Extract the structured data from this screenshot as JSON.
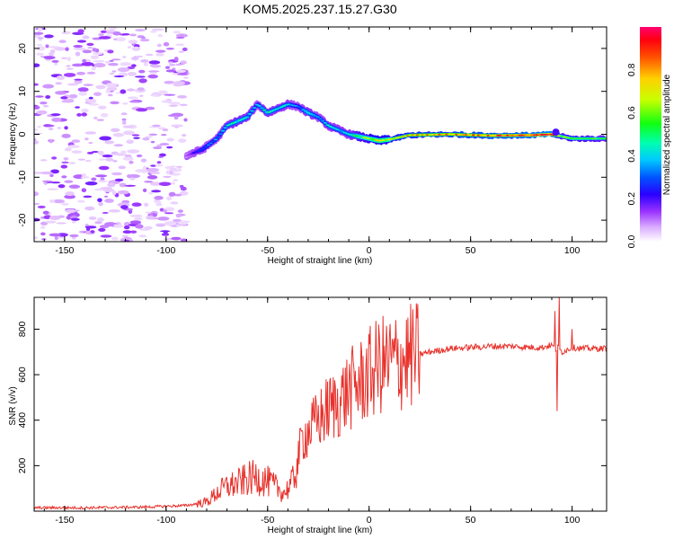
{
  "chart_data": [
    {
      "type": "heatmap",
      "title": "KOM5.2025.237.15.27.G30",
      "xlabel": "Height of straight line (km)",
      "ylabel": "Frequency (Hz)",
      "xlim": [
        -165,
        117
      ],
      "ylim": [
        -25,
        25
      ],
      "xticks": [
        "-150",
        "-100",
        "-50",
        "0",
        "50",
        "100"
      ],
      "yticks": [
        "-20",
        "-10",
        "0",
        "10",
        "20"
      ],
      "colorbar": {
        "label": "Normalized spectral amplitude",
        "range": [
          0,
          1
        ],
        "ticks": [
          "0.0",
          "0.2",
          "0.4",
          "0.6",
          "0.8"
        ]
      },
      "trace": {
        "description": "dominant frequency ridge",
        "x": [
          -90,
          -82,
          -75,
          -70,
          -65,
          -60,
          -55,
          -50,
          -45,
          -40,
          -35,
          -30,
          -25,
          -20,
          -15,
          -10,
          -5,
          0,
          5,
          10,
          20,
          40,
          60,
          80,
          90,
          95,
          100,
          117
        ],
        "freq": [
          -5,
          -3.5,
          -1,
          2,
          3,
          4,
          7,
          5,
          6,
          7,
          6.5,
          5,
          4,
          2,
          1,
          0,
          -0.5,
          -1,
          -1.5,
          -1.2,
          -0.2,
          0,
          -0.3,
          -0.2,
          0,
          -0.5,
          -1,
          -1
        ],
        "amplitude": [
          0.12,
          0.3,
          0.35,
          0.4,
          0.45,
          0.42,
          0.35,
          0.45,
          0.4,
          0.4,
          0.3,
          0.45,
          0.35,
          0.4,
          0.4,
          0.4,
          0.55,
          0.6,
          0.7,
          0.65,
          0.75,
          0.8,
          0.85,
          0.9,
          0.95,
          0.55,
          0.6,
          0.5
        ]
      },
      "noise_region": {
        "x_from": -165,
        "x_to": -90,
        "freq_from": -25,
        "freq_to": 25
      }
    },
    {
      "type": "line",
      "title": "",
      "xlabel": "Height of straight line (km)",
      "ylabel": "SNR (v/v)",
      "xlim": [
        -165,
        117
      ],
      "ylim": [
        0,
        940
      ],
      "xticks": [
        "-150",
        "-100",
        "-50",
        "0",
        "50",
        "100"
      ],
      "yticks": [
        "200",
        "400",
        "600",
        "800"
      ],
      "series": [
        {
          "name": "SNR",
          "color": "#e8322c",
          "x": [
            -165,
            -140,
            -110,
            -90,
            -80,
            -75,
            -70,
            -65,
            -60,
            -55,
            -50,
            -45,
            -42,
            -38,
            -35,
            -33,
            -30,
            -25,
            -20,
            -15,
            -10,
            -5,
            0,
            5,
            10,
            15,
            20,
            25,
            30,
            40,
            50,
            60,
            70,
            80,
            85,
            90,
            92,
            93,
            95,
            100,
            105,
            110,
            117
          ],
          "y": [
            15,
            15,
            18,
            25,
            40,
            80,
            110,
            120,
            140,
            150,
            130,
            100,
            80,
            120,
            230,
            320,
            350,
            400,
            450,
            480,
            530,
            560,
            600,
            640,
            650,
            660,
            680,
            690,
            700,
            715,
            720,
            725,
            725,
            720,
            720,
            730,
            710,
            720,
            700,
            720,
            715,
            715,
            715
          ],
          "spikes": [
            {
              "x": 91.5,
              "y": 880
            },
            {
              "x": 92.5,
              "y": 440
            },
            {
              "x": 93.5,
              "y": 940
            },
            {
              "x": 100,
              "y": 800
            }
          ]
        }
      ]
    }
  ]
}
